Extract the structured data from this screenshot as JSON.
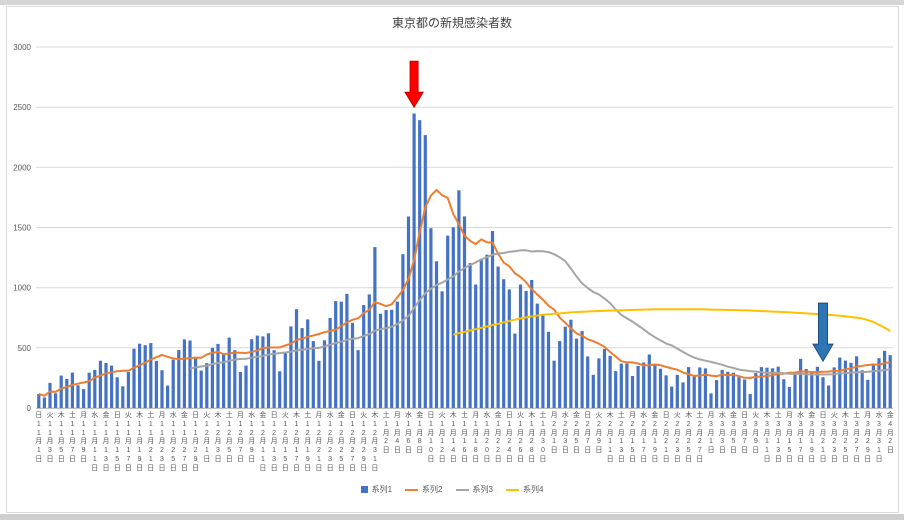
{
  "chart_data": {
    "type": "bar",
    "title": "東京都の新規感染者数",
    "ylim": [
      0,
      3000
    ],
    "y_ticks": [
      0,
      500,
      1000,
      1500,
      2000,
      2500,
      3000
    ],
    "grid": true,
    "legend_position": "bottom",
    "x_start": "11月1日(日)",
    "x_end": "4月2日(金)",
    "x_tick_interval_days": 2,
    "x_tick_labels": [
      "日11月1日",
      "火11月3日",
      "木11月5日",
      "土11月7日",
      "月11月9日",
      "水11月11日",
      "金11月13日",
      "日11月15日",
      "火11月17日",
      "木11月19日",
      "土11月21日",
      "月11月23日",
      "水11月25日",
      "金11月27日",
      "日11月29日",
      "火12月1日",
      "木12月3日",
      "土12月5日",
      "月12月7日",
      "水12月9日",
      "金12月11日",
      "日12月13日",
      "火12月15日",
      "木12月17日",
      "土12月19日",
      "月12月21日",
      "水12月23日",
      "金12月25日",
      "日12月27日",
      "火12月29日",
      "木12月31日",
      "土1月2日",
      "月1月4日",
      "水1月6日",
      "金1月8日",
      "日1月10日",
      "火1月12日",
      "木1月14日",
      "土1月16日",
      "月1月18日",
      "水1月20日",
      "金1月22日",
      "日1月24日",
      "火1月26日",
      "木1月28日",
      "土1月30日",
      "月2月1日",
      "水2月3日",
      "金2月5日",
      "日2月7日",
      "火2月9日",
      "木2月11日",
      "土2月13日",
      "月2月15日",
      "水2月17日",
      "金2月19日",
      "日2月21日",
      "火2月23日",
      "木2月25日",
      "土2月27日",
      "月3月1日",
      "水3月3日",
      "金3月5日",
      "日3月7日",
      "火3月9日",
      "木3月11日",
      "土3月13日",
      "月3月15日",
      "水3月17日",
      "金3月19日",
      "日3月21日",
      "火3月23日",
      "木3月25日",
      "土3月27日",
      "月3月29日",
      "水3月31日",
      "金4月2日"
    ],
    "series": [
      {
        "name": "系列1",
        "type": "bar",
        "color": "#4472C4",
        "values": [
          116,
          87,
          209,
          122,
          269,
          242,
          294,
          189,
          157,
          293,
          317,
          393,
          374,
          352,
          255,
          180,
          298,
          493,
          534,
          522,
          539,
          391,
          314,
          186,
          401,
          481,
          570,
          561,
          418,
          311,
          372,
          500,
          533,
          449,
          584,
          480,
          299,
          352,
          572,
          602,
          595,
          621,
          480,
          305,
          460,
          678,
          821,
          664,
          736,
          556,
          392,
          563,
          748,
          888,
          884,
          949,
          708,
          481,
          856,
          944,
          1337,
          783,
          814,
          816,
          884,
          1278,
          1591,
          2447,
          2392,
          2268,
          1494,
          1219,
          970,
          1433,
          1502,
          1809,
          1592,
          1204,
          1026,
          1240,
          1274,
          1471,
          1175,
          1070,
          986,
          618,
          1026,
          973,
          1064,
          868,
          769,
          633,
          393,
          556,
          676,
          734,
          577,
          639,
          429,
          276,
          412,
          491,
          434,
          307,
          369,
          371,
          266,
          350,
          378,
          445,
          353,
          327,
          272,
          178,
          275,
          213,
          340,
          270,
          337,
          329,
          121,
          232,
          316,
          301,
          293,
          255,
          237,
          116,
          290,
          340,
          335,
          330,
          343,
          239,
          175,
          300,
          409,
          323,
          303,
          342,
          256,
          187,
          337,
          420,
          394,
          376,
          430,
          313,
          234,
          364,
          414,
          475,
          440
        ]
      },
      {
        "name": "系列2",
        "type": "line",
        "color": "#ED7D31",
        "derivation": "moving_average",
        "window": 7,
        "source": "系列1"
      },
      {
        "name": "系列3",
        "type": "line",
        "color": "#A5A5A5",
        "derivation": "moving_average",
        "window": 28,
        "source": "系列1"
      },
      {
        "name": "系列4",
        "type": "line",
        "color": "#FFC000",
        "points": [
          [
            74,
            610
          ],
          [
            78,
            655
          ],
          [
            82,
            700
          ],
          [
            86,
            745
          ],
          [
            90,
            775
          ],
          [
            96,
            798
          ],
          [
            102,
            810
          ],
          [
            110,
            820
          ],
          [
            118,
            820
          ],
          [
            126,
            812
          ],
          [
            134,
            795
          ],
          [
            140,
            778
          ],
          [
            144,
            762
          ],
          [
            147,
            745
          ],
          [
            149,
            715
          ],
          [
            151,
            668
          ],
          [
            152,
            640
          ]
        ]
      }
    ],
    "annotations": [
      {
        "name": "red-down-arrow",
        "shape": "down-arrow",
        "color": "#FF0000",
        "outline": "#C00000",
        "day_index": 67,
        "tip_value": 2500
      },
      {
        "name": "blue-down-arrow",
        "shape": "down-arrow",
        "color": "#2E75B6",
        "outline": "#1F4E79",
        "day_index": 140,
        "tip_value": 390
      }
    ]
  }
}
